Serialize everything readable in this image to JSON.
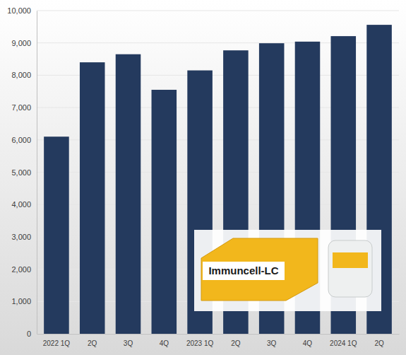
{
  "chart_data": {
    "type": "bar",
    "categories": [
      "2022 1Q",
      "2Q",
      "3Q",
      "4Q",
      "2023 1Q",
      "2Q",
      "3Q",
      "4Q",
      "2024 1Q",
      "2Q"
    ],
    "values": [
      6100,
      8400,
      8650,
      7550,
      8150,
      8770,
      8990,
      9040,
      9210,
      9560
    ],
    "color": "#243a5e",
    "ylim": [
      0,
      10000
    ],
    "yticks": [
      0,
      {
        "value": 1000,
        "label": "1,000"
      },
      {
        "value": 2000,
        "label": "2,000"
      },
      {
        "value": 3000,
        "label": "3,000"
      },
      {
        "value": 4000,
        "label": "4,000"
      },
      {
        "value": 5000,
        "label": "5,000"
      },
      {
        "value": 6000,
        "label": "6,000"
      },
      {
        "value": 7000,
        "label": "7,000"
      },
      {
        "value": 8000,
        "label": "8,000"
      },
      {
        "value": 9000,
        "label": "9,000"
      },
      {
        "value": 10000,
        "label": "10,000"
      }
    ],
    "grid": true,
    "annotations": [
      "Immuncell-LC"
    ]
  }
}
